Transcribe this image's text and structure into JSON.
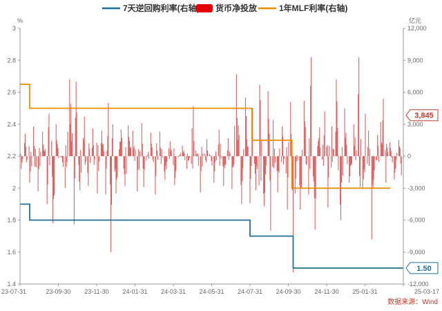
{
  "chart_data": {
    "type": "bar+line",
    "source": "数据来源：Wind",
    "legend": [
      {
        "name": "7天逆回购利率(右轴)",
        "color": "#1f6f94",
        "kind": "line"
      },
      {
        "name": "货币净投放",
        "color": "#e60000",
        "kind": "rect"
      },
      {
        "name": "1年MLF利率(右轴)",
        "color": "#f08c00",
        "kind": "line"
      }
    ],
    "left_axis": {
      "unit": "%",
      "min": 1.4,
      "max": 3.0,
      "ticks": [
        "3",
        "2.8",
        "2.6",
        "2.4",
        "2.2",
        "2",
        "1.8",
        "1.6",
        "1.4"
      ]
    },
    "right_axis": {
      "unit": "亿元",
      "min": -12000,
      "max": 12000,
      "ticks": [
        "12,000",
        "9,000",
        "6,000",
        "3,000",
        "0",
        "-3,000",
        "-6,000",
        "-9,000",
        "-12,000"
      ]
    },
    "x_axis": {
      "start": "2023-07-31",
      "end": "2025-03-17",
      "tick_labels": [
        "23-07-31",
        "23-09-30",
        "23-11-30",
        "24-01-31",
        "24-03-31",
        "24-05-31",
        "24-07-31",
        "24-09-30",
        "24-11-30",
        "25-01-31",
        "25-03-17"
      ]
    },
    "net_injection": {
      "name": "货币净投放",
      "color": "#e06060",
      "peaks": [
        {
          "date": "2023-08-02",
          "value": -1200
        },
        {
          "date": "2023-08-08",
          "value": 2100
        },
        {
          "date": "2023-08-15",
          "value": -2500
        },
        {
          "date": "2023-08-21",
          "value": 2800
        },
        {
          "date": "2023-08-28",
          "value": -3300
        },
        {
          "date": "2023-09-04",
          "value": 2300
        },
        {
          "date": "2023-09-11",
          "value": -4500
        },
        {
          "date": "2023-09-14",
          "value": 4000
        },
        {
          "date": "2023-09-20",
          "value": -6300
        },
        {
          "date": "2023-09-25",
          "value": 3000
        },
        {
          "date": "2023-10-09",
          "value": -3000
        },
        {
          "date": "2023-10-16",
          "value": 7200
        },
        {
          "date": "2023-10-18",
          "value": 4900
        },
        {
          "date": "2023-10-23",
          "value": -6400
        },
        {
          "date": "2023-10-26",
          "value": 7000
        },
        {
          "date": "2023-11-01",
          "value": -3200
        },
        {
          "date": "2023-11-08",
          "value": 3700
        },
        {
          "date": "2023-11-14",
          "value": -2800
        },
        {
          "date": "2023-11-21",
          "value": 2600
        },
        {
          "date": "2023-11-28",
          "value": -3500
        },
        {
          "date": "2023-12-05",
          "value": 2400
        },
        {
          "date": "2023-12-11",
          "value": -3600
        },
        {
          "date": "2023-12-15",
          "value": 5000
        },
        {
          "date": "2023-12-19",
          "value": -9000
        },
        {
          "date": "2023-12-22",
          "value": 3000
        },
        {
          "date": "2023-12-27",
          "value": -3500
        },
        {
          "date": "2024-01-04",
          "value": 2500
        },
        {
          "date": "2024-01-10",
          "value": -2800
        },
        {
          "date": "2024-01-15",
          "value": 2900
        },
        {
          "date": "2024-01-22",
          "value": 2400
        },
        {
          "date": "2024-01-29",
          "value": -3300
        },
        {
          "date": "2024-02-05",
          "value": 3100
        },
        {
          "date": "2024-02-08",
          "value": -2900
        },
        {
          "date": "2024-02-19",
          "value": 2200
        },
        {
          "date": "2024-02-26",
          "value": -3600
        },
        {
          "date": "2024-03-04",
          "value": 2300
        },
        {
          "date": "2024-03-12",
          "value": -2200
        },
        {
          "date": "2024-03-20",
          "value": 1400
        },
        {
          "date": "2024-03-27",
          "value": -2700
        },
        {
          "date": "2024-04-08",
          "value": 1000
        },
        {
          "date": "2024-04-15",
          "value": -1200
        },
        {
          "date": "2024-04-25",
          "value": 4700
        },
        {
          "date": "2024-05-06",
          "value": -3400
        },
        {
          "date": "2024-05-16",
          "value": 1600
        },
        {
          "date": "2024-05-27",
          "value": -2500
        },
        {
          "date": "2024-06-04",
          "value": 2500
        },
        {
          "date": "2024-06-11",
          "value": -2800
        },
        {
          "date": "2024-06-18",
          "value": 1700
        },
        {
          "date": "2024-06-24",
          "value": -3100
        },
        {
          "date": "2024-07-01",
          "value": 7700
        },
        {
          "date": "2024-07-04",
          "value": 2900
        },
        {
          "date": "2024-07-09",
          "value": -4500
        },
        {
          "date": "2024-07-15",
          "value": 5500
        },
        {
          "date": "2024-07-22",
          "value": -4400
        },
        {
          "date": "2024-07-26",
          "value": 4500
        },
        {
          "date": "2024-07-31",
          "value": -3200
        },
        {
          "date": "2024-08-06",
          "value": 6700
        },
        {
          "date": "2024-08-13",
          "value": -4700
        },
        {
          "date": "2024-08-19",
          "value": 6100
        },
        {
          "date": "2024-08-23",
          "value": -7000
        },
        {
          "date": "2024-08-27",
          "value": 3400
        },
        {
          "date": "2024-09-03",
          "value": -3400
        },
        {
          "date": "2024-09-10",
          "value": 2800
        },
        {
          "date": "2024-09-18",
          "value": -5000
        },
        {
          "date": "2024-09-23",
          "value": 5100
        },
        {
          "date": "2024-09-27",
          "value": -10900
        },
        {
          "date": "2024-10-08",
          "value": -5000
        },
        {
          "date": "2024-10-14",
          "value": 5200
        },
        {
          "date": "2024-10-21",
          "value": -3600
        },
        {
          "date": "2024-10-25",
          "value": 9300
        },
        {
          "date": "2024-10-31",
          "value": -6900
        },
        {
          "date": "2024-11-07",
          "value": 2700
        },
        {
          "date": "2024-11-15",
          "value": 4200
        },
        {
          "date": "2024-11-20",
          "value": -4800
        },
        {
          "date": "2024-11-26",
          "value": 2800
        },
        {
          "date": "2024-12-03",
          "value": 7200
        },
        {
          "date": "2024-12-10",
          "value": -6000
        },
        {
          "date": "2024-12-16",
          "value": 4500
        },
        {
          "date": "2024-12-23",
          "value": -2500
        },
        {
          "date": "2024-12-30",
          "value": 3000
        },
        {
          "date": "2025-01-07",
          "value": 9300
        },
        {
          "date": "2025-01-13",
          "value": -3100
        },
        {
          "date": "2025-01-17",
          "value": 4000
        },
        {
          "date": "2025-01-22",
          "value": 2400
        },
        {
          "date": "2025-01-27",
          "value": -7800
        },
        {
          "date": "2025-02-05",
          "value": 2000
        },
        {
          "date": "2025-02-10",
          "value": 3200
        },
        {
          "date": "2025-02-14",
          "value": 5400
        },
        {
          "date": "2025-02-18",
          "value": -2500
        },
        {
          "date": "2025-02-24",
          "value": 1300
        },
        {
          "date": "2025-03-03",
          "value": -2200
        },
        {
          "date": "2025-03-10",
          "value": 1500
        },
        {
          "date": "2025-03-14",
          "value": -1800
        }
      ],
      "last_value_label": "3,845"
    },
    "rr7d": {
      "name": "7天逆回购利率(右轴)",
      "color": "#1f6f94",
      "steps": [
        {
          "date": "2023-07-31",
          "value": 1.9
        },
        {
          "date": "2023-08-15",
          "value": 1.8
        },
        {
          "date": "2024-07-22",
          "value": 1.7
        },
        {
          "date": "2024-09-27",
          "value": 1.5
        }
      ],
      "end_date": "2025-03-17",
      "last_value_label": "1.50"
    },
    "mlf1y": {
      "name": "1年MLF利率(右轴)",
      "color": "#f08c00",
      "steps": [
        {
          "date": "2023-07-31",
          "value": 2.65
        },
        {
          "date": "2023-08-15",
          "value": 2.5
        },
        {
          "date": "2024-07-25",
          "value": 2.3
        },
        {
          "date": "2024-09-25",
          "value": 2.0
        }
      ],
      "end_date": "2025-02-25"
    }
  }
}
